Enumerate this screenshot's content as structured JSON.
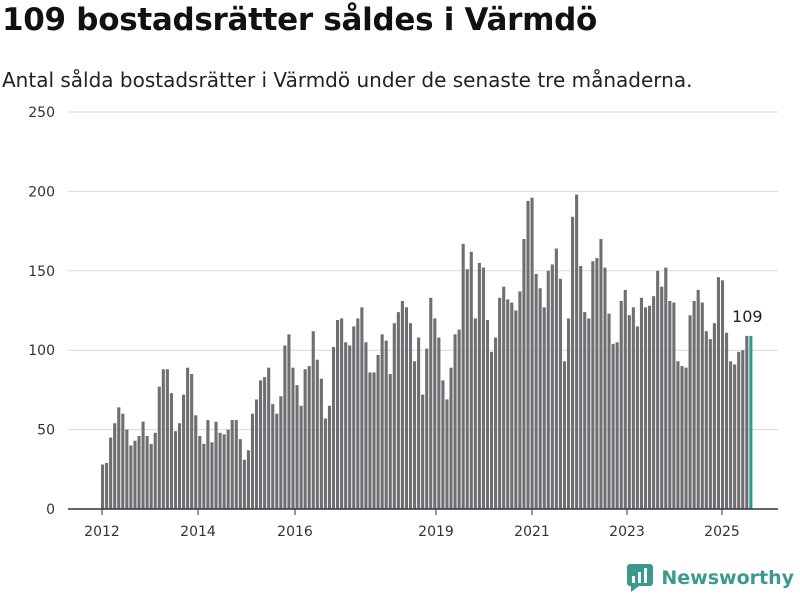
{
  "title": "109 bostadsrätter såldes i Värmdö",
  "subtitle": "Antal sålda bostadsrätter i Värmdö under de senaste tre månaderna.",
  "brand": {
    "name": "Newsworthy"
  },
  "colors": {
    "bar": "#6e6e73",
    "highlight": "#2a9d8f",
    "grid": "#d9d9d9",
    "axis": "#333333"
  },
  "chart_data": {
    "type": "bar",
    "title": "109 bostadsrätter såldes i Värmdö",
    "xlabel": "",
    "ylabel": "",
    "ylim": [
      0,
      250
    ],
    "y_ticks": [
      0,
      50,
      100,
      150,
      200,
      250
    ],
    "x_ticks": [
      "2012",
      "2014",
      "2016",
      "2019",
      "2021",
      "2023",
      "2025"
    ],
    "grid": true,
    "legend": "none",
    "last_value_label": "109",
    "series": [
      {
        "values": [
          28,
          29,
          45,
          54,
          64,
          60,
          50,
          40,
          43,
          46,
          55,
          46,
          41,
          48,
          77,
          88,
          88,
          73,
          49,
          54,
          72,
          89,
          85,
          59,
          46,
          41,
          56,
          42,
          55,
          48,
          47,
          50,
          56,
          56,
          44,
          31,
          37,
          60,
          69,
          81,
          83,
          89,
          66,
          60,
          71,
          103,
          110,
          89,
          78,
          65,
          88,
          90,
          112,
          94,
          82,
          57,
          65,
          102,
          119,
          120,
          105,
          103,
          115,
          120,
          127,
          105,
          86,
          86,
          97,
          110,
          106,
          85,
          117,
          124,
          131,
          127,
          117,
          93,
          108,
          72,
          101,
          133,
          120,
          108,
          81,
          69,
          89,
          110,
          113,
          167,
          151,
          162,
          120,
          155,
          152,
          119,
          99,
          108,
          133,
          140,
          132,
          130,
          125,
          137,
          170,
          194,
          196,
          148,
          139,
          127,
          150,
          154,
          164,
          145,
          93,
          120,
          184,
          198,
          153,
          124,
          120,
          156,
          158,
          170,
          152,
          123,
          104,
          105,
          131,
          138,
          122,
          127,
          115,
          133,
          127,
          128,
          134,
          150,
          140,
          152,
          131,
          130,
          93,
          90,
          89,
          122,
          131,
          138,
          130,
          112,
          107,
          117,
          146,
          144,
          111,
          93,
          91,
          99,
          100,
          109,
          109
        ]
      }
    ]
  }
}
